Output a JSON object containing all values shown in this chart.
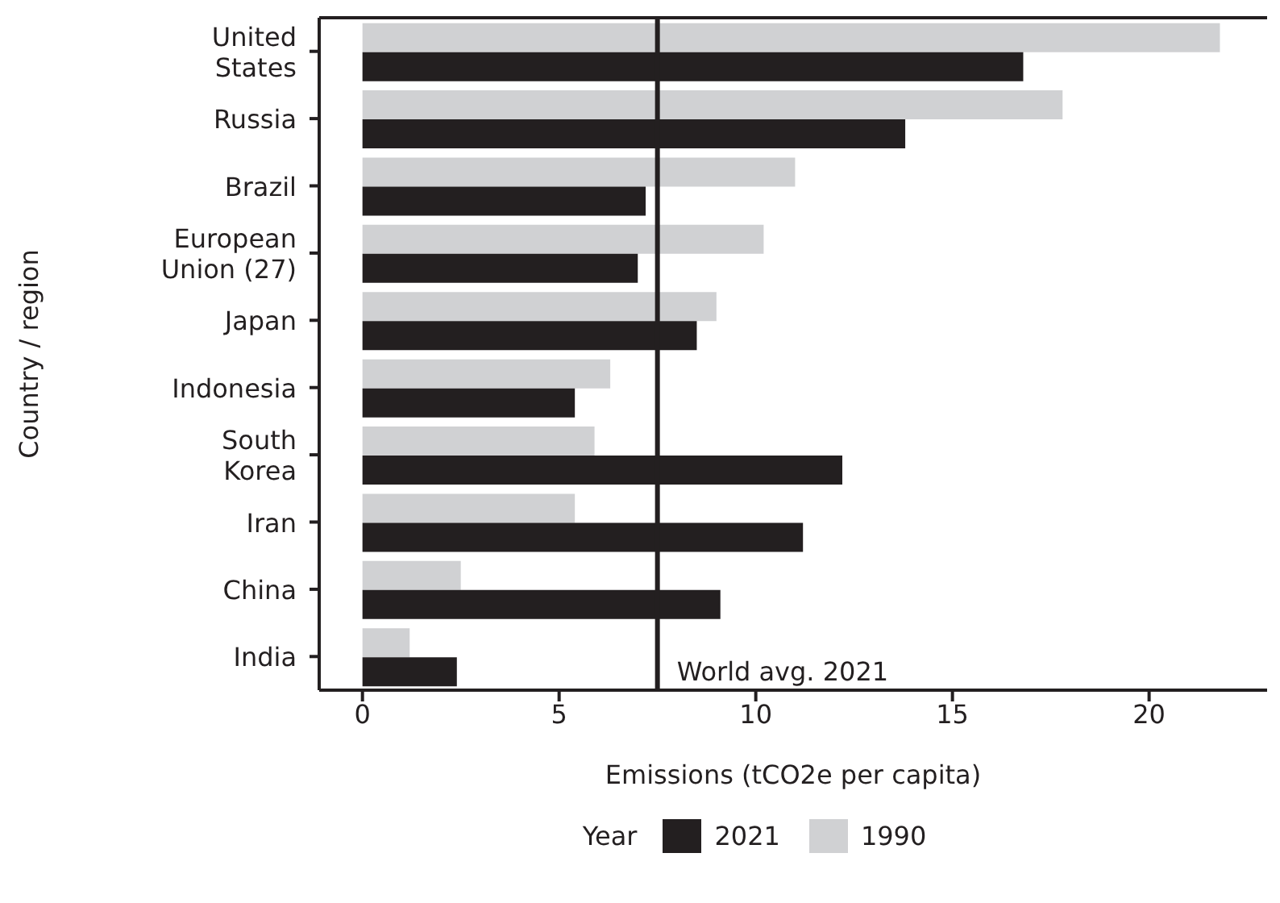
{
  "chart_data": {
    "type": "bar",
    "orientation": "horizontal",
    "xlabel": "Emissions (tCO2e per capita)",
    "ylabel": "Country / region",
    "legend_title": "Year",
    "legend": "bottom",
    "categories": [
      "United States",
      "Russia",
      "Brazil",
      "European Union (27)",
      "Japan",
      "Indonesia",
      "South Korea",
      "Iran",
      "China",
      "India"
    ],
    "series": [
      {
        "name": "2021",
        "color": "#231f20",
        "values": [
          16.8,
          13.8,
          7.2,
          7.0,
          8.5,
          5.4,
          12.2,
          11.2,
          9.1,
          2.4
        ]
      },
      {
        "name": "1990",
        "color": "#d0d1d3",
        "values": [
          21.8,
          17.8,
          11.0,
          10.2,
          9.0,
          6.3,
          5.9,
          5.4,
          2.5,
          1.2
        ]
      }
    ],
    "xlim": [
      -1.1,
      23
    ],
    "xticks": [
      0,
      5,
      10,
      15,
      20
    ],
    "ref_lines": [
      {
        "axis": "x",
        "value": 7.5,
        "label": "World avg. 2021",
        "color": "#231f20"
      }
    ]
  }
}
